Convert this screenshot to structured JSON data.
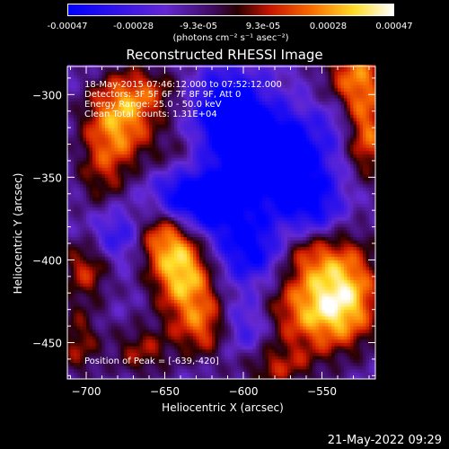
{
  "chart_data": {
    "type": "heatmap",
    "title": "Reconstructed RHESSI Image",
    "xlabel": "Heliocentric X (arcsec)",
    "ylabel": "Heliocentric Y (arcsec)",
    "xlim": [
      -712,
      -516
    ],
    "ylim": [
      -472,
      -283
    ],
    "x_ticks": [
      -700,
      -650,
      -600,
      -550
    ],
    "y_ticks": [
      -300,
      -350,
      -400,
      -450
    ],
    "colorbar": {
      "min": -0.00047,
      "max": 0.00047,
      "tick_labels": [
        "-0.00047",
        "-0.00028",
        "-9.3e-05",
        "9.3e-05",
        "0.00028",
        "0.00047"
      ],
      "tick_values": [
        -0.00047,
        -0.00028,
        -9.3e-05,
        9.3e-05,
        0.00028,
        0.00047
      ],
      "unit": "(photons cm⁻² s⁻¹ asec⁻²)"
    },
    "annotations": {
      "time": "18-May-2015 07:46:12.000 to 07:52:12.000",
      "detectors": "Detectors: 3F 5F 6F 7F 8F 9F, Att 0",
      "energy": "Energy Range: 25.0 - 50.0 keV",
      "clean": "Clean      Total counts: 1.31E+04",
      "peak": "Position of Peak = [-639,-420]"
    },
    "peak": [
      -639,
      -420
    ],
    "sources_description": "positive (red-yellow) emission in an upper-left arc, an upper-right corner patch, a lower-center blob and a lower-right band; negative (blue) diagonal bands running lower-left to upper-right between them"
  },
  "footer": {
    "timestamp": "21-May-2022 09:29"
  }
}
